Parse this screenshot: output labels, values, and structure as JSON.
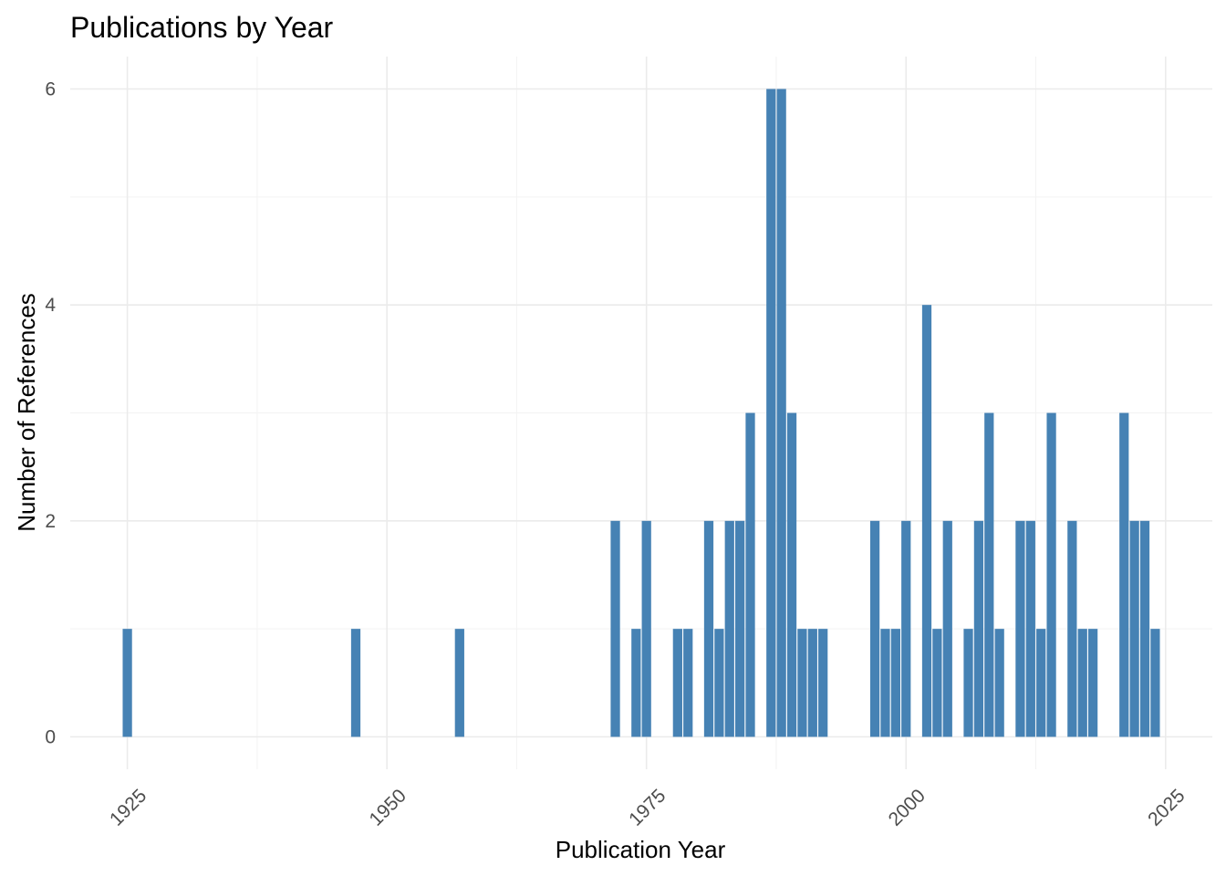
{
  "chart_data": {
    "type": "bar",
    "title": "Publications by Year",
    "xlabel": "Publication Year",
    "ylabel": "Number of References",
    "xlim": [
      1919.5,
      2029.5
    ],
    "ylim": [
      -0.3,
      6.3
    ],
    "x_ticks": [
      1925,
      1950,
      1975,
      2000,
      2025
    ],
    "y_ticks": [
      0,
      2,
      4,
      6
    ],
    "grid": true,
    "bar_color": "#4682b4",
    "x": [
      1925,
      1947,
      1957,
      1972,
      1974,
      1975,
      1978,
      1979,
      1981,
      1982,
      1983,
      1984,
      1985,
      1987,
      1988,
      1989,
      1990,
      1991,
      1992,
      1997,
      1998,
      1999,
      2000,
      2002,
      2003,
      2004,
      2006,
      2007,
      2008,
      2009,
      2011,
      2012,
      2013,
      2014,
      2016,
      2017,
      2018,
      2021,
      2022,
      2023,
      2024
    ],
    "values": [
      1,
      1,
      1,
      2,
      1,
      2,
      1,
      1,
      2,
      1,
      2,
      2,
      3,
      6,
      6,
      3,
      1,
      1,
      1,
      2,
      1,
      1,
      2,
      4,
      1,
      2,
      1,
      2,
      3,
      1,
      2,
      2,
      1,
      3,
      2,
      1,
      1,
      3,
      2,
      2,
      1
    ]
  }
}
